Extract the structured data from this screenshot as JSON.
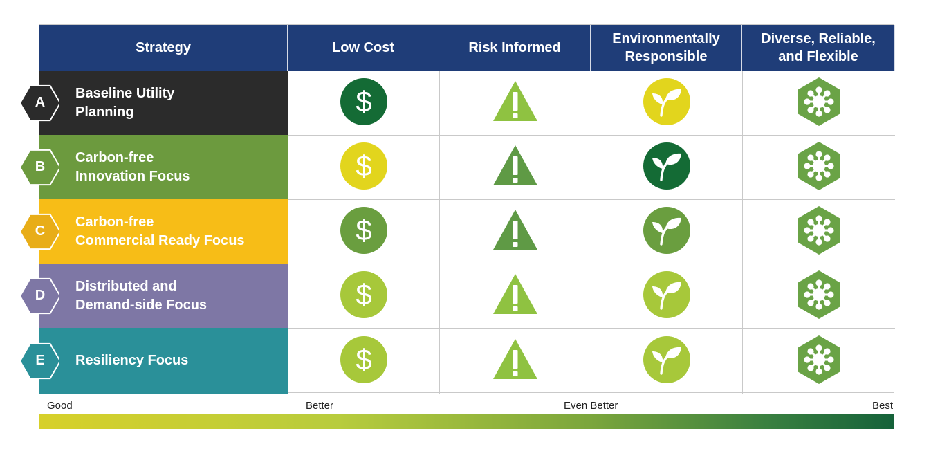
{
  "header": {
    "strategy": "Strategy",
    "criteria": [
      "Low Cost",
      "Risk Informed",
      "Environmentally\nResponsible",
      "Diverse, Reliable,\nand Flexible"
    ]
  },
  "strategies": [
    {
      "letter": "A",
      "name": "Baseline Utility\nPlanning",
      "color": "#2b2b2b",
      "badge_color": "#2b2b2b",
      "ratings": [
        "dollar-icon:#146b35",
        "warning-icon:#8fc241",
        "leaf-icon:#e2d51d",
        "network-icon:#6aa346"
      ]
    },
    {
      "letter": "B",
      "name": "Carbon-free\nInnovation Focus",
      "color": "#6c9a3e",
      "badge_color": "#6c9a3e",
      "ratings": [
        "dollar-icon:#e2d51d",
        "warning-icon:#5f9a45",
        "leaf-icon:#146b35",
        "network-icon:#6aa346"
      ]
    },
    {
      "letter": "C",
      "name": "Carbon-free\nCommercial Ready Focus",
      "color": "#f7bd17",
      "badge_color": "#e8ad18",
      "ratings": [
        "dollar-icon:#6a9e3f",
        "warning-icon:#5f9a45",
        "leaf-icon:#6a9e3f",
        "network-icon:#6aa346"
      ]
    },
    {
      "letter": "D",
      "name": "Distributed and\nDemand-side Focus",
      "color": "#7e77a5",
      "badge_color": "#7e77a5",
      "ratings": [
        "dollar-icon:#a7c83a",
        "warning-icon:#8fc241",
        "leaf-icon:#a7c83a",
        "network-icon:#6aa346"
      ]
    },
    {
      "letter": "E",
      "name": "Resiliency Focus",
      "color": "#2a9099",
      "badge_color": "#2a9099",
      "ratings": [
        "dollar-icon:#a7c83a",
        "warning-icon:#8fc241",
        "leaf-icon:#a7c83a",
        "network-icon:#6aa346"
      ]
    }
  ],
  "scale": {
    "labels": [
      "Good",
      "Better",
      "Even Better",
      "Best"
    ],
    "gradient_colors": [
      "#d7d02a",
      "#b8cc3d",
      "#7aa53c",
      "#3a8040",
      "#15623a"
    ]
  }
}
